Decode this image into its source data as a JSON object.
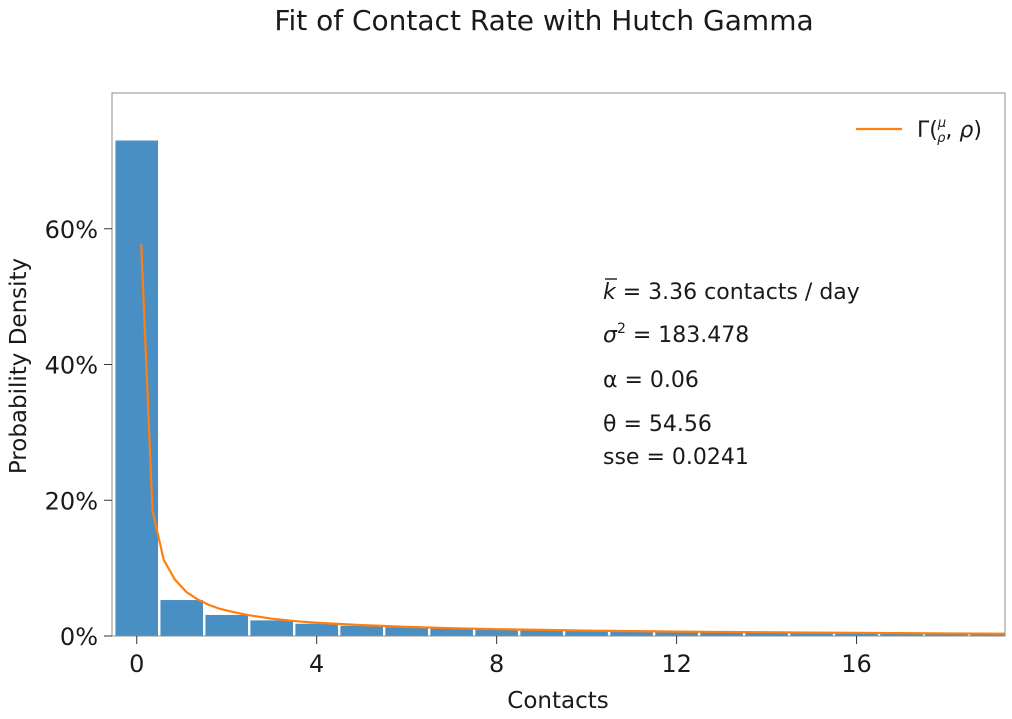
{
  "chart_data": {
    "type": "bar",
    "title": "Fit of Contact Rate with Hutch Gamma",
    "xlabel": "Contacts",
    "ylabel": "Probability Density",
    "xlim": [
      -0.55,
      19.3
    ],
    "ylim": [
      0,
      80
    ],
    "xticks": [
      0,
      4,
      8,
      12,
      16
    ],
    "xtick_labels": [
      "0",
      "4",
      "8",
      "12",
      "16"
    ],
    "yticks": [
      0,
      20,
      40,
      60
    ],
    "ytick_labels": [
      "0%",
      "20%",
      "40%",
      "60%"
    ],
    "grid": false,
    "legend": {
      "position": "top-right",
      "entries": [
        {
          "label": "Γ(μ/ρ, ρ)",
          "color": "#ff7f0e"
        }
      ]
    },
    "bar_color": "#4a8fc4",
    "line_color": "#ff7f0e",
    "series": [
      {
        "kind": "bar",
        "bin_width": 1,
        "x": [
          0,
          1,
          2,
          3,
          4,
          5,
          6,
          7,
          8,
          9,
          10,
          11,
          12,
          13,
          14,
          15,
          16,
          17,
          18,
          19
        ],
        "values": [
          73.0,
          5.3,
          3.1,
          2.3,
          1.8,
          1.5,
          1.3,
          1.1,
          1.0,
          0.9,
          0.8,
          0.7,
          0.65,
          0.6,
          0.55,
          0.5,
          0.45,
          0.4,
          0.4,
          0.35
        ]
      },
      {
        "kind": "line",
        "name": "Γ(μ/ρ, ρ)",
        "x": [
          0.1,
          0.35,
          0.6,
          0.85,
          1.1,
          1.35,
          1.6,
          1.85,
          2.1,
          2.5,
          3.0,
          3.5,
          4.0,
          5.0,
          6.0,
          7.0,
          8.0,
          9.0,
          10.0,
          11.0,
          12.0,
          13.0,
          14.0,
          15.0,
          16.0,
          17.0,
          18.0,
          19.3
        ],
        "values": [
          57.7,
          18.5,
          11.2,
          8.3,
          6.5,
          5.4,
          4.6,
          4.0,
          3.6,
          3.05,
          2.55,
          2.2,
          1.95,
          1.6,
          1.35,
          1.15,
          1.0,
          0.9,
          0.8,
          0.72,
          0.65,
          0.6,
          0.55,
          0.5,
          0.46,
          0.42,
          0.38,
          0.34
        ]
      }
    ],
    "annotations": [
      {
        "id": "mean",
        "text": " = 3.36 contacts / day"
      },
      {
        "id": "variance",
        "text": " = 183.478"
      },
      {
        "id": "alpha",
        "text": "α = 0.06"
      },
      {
        "id": "theta",
        "text": "θ = 54.56"
      },
      {
        "id": "sse",
        "text": "sse = 0.0241"
      }
    ]
  }
}
